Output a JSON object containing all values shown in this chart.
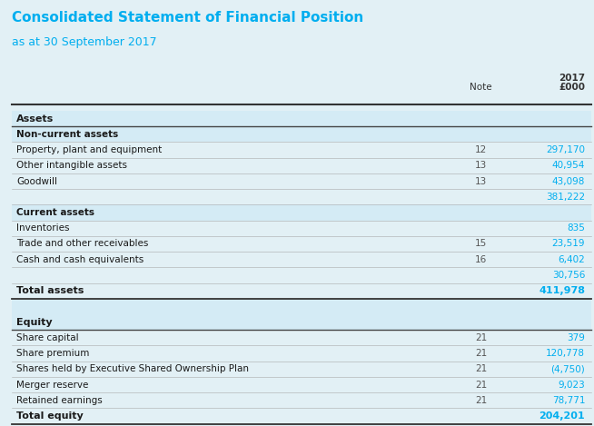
{
  "title": "Consolidated Statement of Financial Position",
  "subtitle": "as at 30 September 2017",
  "title_color": "#00AEEF",
  "subtitle_color": "#00AEEF",
  "background_color": "#E2F0F5",
  "header_note": "Note",
  "header_year": "2017",
  "header_unit": "£000",
  "col_value_color": "#00AEEF",
  "rows": [
    {
      "label": "Assets",
      "note": "",
      "value": "",
      "style": "section_header",
      "shade": false
    },
    {
      "label": "Non-current assets",
      "note": "",
      "value": "",
      "style": "subsection_header",
      "shade": true
    },
    {
      "label": "Property, plant and equipment",
      "note": "12",
      "value": "297,170",
      "style": "item",
      "shade": false
    },
    {
      "label": "Other intangible assets",
      "note": "13",
      "value": "40,954",
      "style": "item",
      "shade": false
    },
    {
      "label": "Goodwill",
      "note": "13",
      "value": "43,098",
      "style": "item",
      "shade": false
    },
    {
      "label": "",
      "note": "",
      "value": "381,222",
      "style": "subtotal",
      "shade": false
    },
    {
      "label": "Current assets",
      "note": "",
      "value": "",
      "style": "subsection_header",
      "shade": true
    },
    {
      "label": "Inventories",
      "note": "",
      "value": "835",
      "style": "item",
      "shade": false
    },
    {
      "label": "Trade and other receivables",
      "note": "15",
      "value": "23,519",
      "style": "item",
      "shade": false
    },
    {
      "label": "Cash and cash equivalents",
      "note": "16",
      "value": "6,402",
      "style": "item",
      "shade": false
    },
    {
      "label": "",
      "note": "",
      "value": "30,756",
      "style": "subtotal",
      "shade": false
    },
    {
      "label": "Total assets",
      "note": "",
      "value": "411,978",
      "style": "total",
      "shade": false
    },
    {
      "label": "",
      "note": "",
      "value": "",
      "style": "spacer",
      "shade": true
    },
    {
      "label": "Equity",
      "note": "",
      "value": "",
      "style": "section_header",
      "shade": true
    },
    {
      "label": "Share capital",
      "note": "21",
      "value": "379",
      "style": "item",
      "shade": false
    },
    {
      "label": "Share premium",
      "note": "21",
      "value": "120,778",
      "style": "item",
      "shade": false
    },
    {
      "label": "Shares held by Executive Shared Ownership Plan",
      "note": "21",
      "value": "(4,750)",
      "style": "item",
      "shade": false
    },
    {
      "label": "Merger reserve",
      "note": "21",
      "value": "9,023",
      "style": "item",
      "shade": false
    },
    {
      "label": "Retained earnings",
      "note": "21",
      "value": "78,771",
      "style": "item",
      "shade": false
    },
    {
      "label": "Total equity",
      "note": "",
      "value": "204,201",
      "style": "total",
      "shade": false
    }
  ]
}
